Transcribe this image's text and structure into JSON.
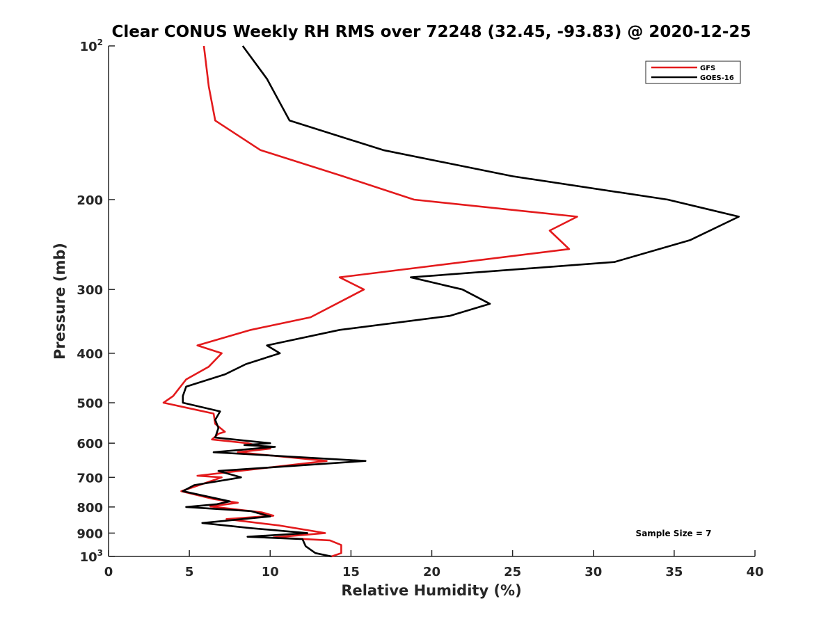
{
  "chart_data": {
    "type": "line",
    "title": "Clear CONUS Weekly RH RMS over 72248 (32.45, -93.83) @ 2020-12-25",
    "xlabel": "Relative Humidity (%)",
    "ylabel": "Pressure (mb)",
    "xlim": [
      0,
      40
    ],
    "ylim": [
      100,
      1000
    ],
    "yscale": "log",
    "yreversed": true,
    "xticks": [
      0,
      5,
      10,
      15,
      20,
      25,
      30,
      35,
      40
    ],
    "yticks": [
      {
        "value": 100,
        "base": "10",
        "exp": "2"
      },
      {
        "value": 200,
        "label": "200"
      },
      {
        "value": 300,
        "label": "300"
      },
      {
        "value": 400,
        "label": "400"
      },
      {
        "value": 500,
        "label": "500"
      },
      {
        "value": 600,
        "label": "600"
      },
      {
        "value": 700,
        "label": "700"
      },
      {
        "value": 800,
        "label": "800"
      },
      {
        "value": 900,
        "label": "900"
      },
      {
        "value": 1000,
        "base": "10",
        "exp": "3"
      }
    ],
    "legend": {
      "position": "top-right"
    },
    "annotation": "Sample Size = 7",
    "series": [
      {
        "name": "GFS",
        "color": "#e31a1c",
        "points": [
          {
            "x": 5.9,
            "p": 100
          },
          {
            "x": 6.2,
            "p": 120
          },
          {
            "x": 6.6,
            "p": 140
          },
          {
            "x": 9.4,
            "p": 160
          },
          {
            "x": 14.5,
            "p": 180
          },
          {
            "x": 18.9,
            "p": 200
          },
          {
            "x": 29.0,
            "p": 216
          },
          {
            "x": 27.3,
            "p": 230
          },
          {
            "x": 28.5,
            "p": 250
          },
          {
            "x": 14.3,
            "p": 284
          },
          {
            "x": 15.8,
            "p": 300
          },
          {
            "x": 12.5,
            "p": 340
          },
          {
            "x": 8.8,
            "p": 360
          },
          {
            "x": 5.5,
            "p": 386
          },
          {
            "x": 7.0,
            "p": 400
          },
          {
            "x": 6.2,
            "p": 425
          },
          {
            "x": 4.8,
            "p": 450
          },
          {
            "x": 4.0,
            "p": 485
          },
          {
            "x": 3.4,
            "p": 500
          },
          {
            "x": 6.5,
            "p": 525
          },
          {
            "x": 6.6,
            "p": 550
          },
          {
            "x": 7.2,
            "p": 570
          },
          {
            "x": 6.8,
            "p": 575
          },
          {
            "x": 6.4,
            "p": 590
          },
          {
            "x": 8.6,
            "p": 600
          },
          {
            "x": 10.0,
            "p": 615
          },
          {
            "x": 8.0,
            "p": 625
          },
          {
            "x": 13.5,
            "p": 650
          },
          {
            "x": 10.2,
            "p": 668
          },
          {
            "x": 5.5,
            "p": 695
          },
          {
            "x": 7.0,
            "p": 700
          },
          {
            "x": 5.6,
            "p": 725
          },
          {
            "x": 4.5,
            "p": 745
          },
          {
            "x": 6.5,
            "p": 772
          },
          {
            "x": 8.0,
            "p": 785
          },
          {
            "x": 6.3,
            "p": 798
          },
          {
            "x": 9.5,
            "p": 820
          },
          {
            "x": 10.2,
            "p": 832
          },
          {
            "x": 7.3,
            "p": 845
          },
          {
            "x": 10.6,
            "p": 870
          },
          {
            "x": 13.4,
            "p": 900
          },
          {
            "x": 10.2,
            "p": 918
          },
          {
            "x": 13.7,
            "p": 930
          },
          {
            "x": 14.4,
            "p": 950
          },
          {
            "x": 14.4,
            "p": 985
          },
          {
            "x": 13.8,
            "p": 1000
          }
        ]
      },
      {
        "name": "GOES-16",
        "color": "#000000",
        "points": [
          {
            "x": 8.3,
            "p": 100
          },
          {
            "x": 9.8,
            "p": 116
          },
          {
            "x": 11.2,
            "p": 140
          },
          {
            "x": 17.0,
            "p": 160
          },
          {
            "x": 25.0,
            "p": 180
          },
          {
            "x": 34.6,
            "p": 200
          },
          {
            "x": 39.0,
            "p": 216
          },
          {
            "x": 36.0,
            "p": 240
          },
          {
            "x": 31.3,
            "p": 265
          },
          {
            "x": 18.7,
            "p": 284
          },
          {
            "x": 21.9,
            "p": 300
          },
          {
            "x": 23.6,
            "p": 320
          },
          {
            "x": 21.1,
            "p": 338
          },
          {
            "x": 14.3,
            "p": 360
          },
          {
            "x": 9.8,
            "p": 386
          },
          {
            "x": 10.6,
            "p": 400
          },
          {
            "x": 8.5,
            "p": 420
          },
          {
            "x": 7.2,
            "p": 440
          },
          {
            "x": 4.8,
            "p": 465
          },
          {
            "x": 4.6,
            "p": 485
          },
          {
            "x": 4.6,
            "p": 500
          },
          {
            "x": 6.9,
            "p": 520
          },
          {
            "x": 6.6,
            "p": 540
          },
          {
            "x": 6.8,
            "p": 560
          },
          {
            "x": 6.6,
            "p": 585
          },
          {
            "x": 10.0,
            "p": 600
          },
          {
            "x": 8.4,
            "p": 605
          },
          {
            "x": 10.3,
            "p": 610
          },
          {
            "x": 6.5,
            "p": 625
          },
          {
            "x": 15.9,
            "p": 650
          },
          {
            "x": 6.8,
            "p": 680
          },
          {
            "x": 8.2,
            "p": 700
          },
          {
            "x": 5.3,
            "p": 725
          },
          {
            "x": 4.6,
            "p": 745
          },
          {
            "x": 7.5,
            "p": 780
          },
          {
            "x": 6.7,
            "p": 790
          },
          {
            "x": 4.8,
            "p": 800
          },
          {
            "x": 8.8,
            "p": 815
          },
          {
            "x": 10.0,
            "p": 835
          },
          {
            "x": 5.8,
            "p": 860
          },
          {
            "x": 8.8,
            "p": 880
          },
          {
            "x": 12.3,
            "p": 900
          },
          {
            "x": 8.6,
            "p": 915
          },
          {
            "x": 12.0,
            "p": 925
          },
          {
            "x": 12.2,
            "p": 955
          },
          {
            "x": 12.8,
            "p": 985
          },
          {
            "x": 13.8,
            "p": 1000
          }
        ]
      }
    ]
  }
}
